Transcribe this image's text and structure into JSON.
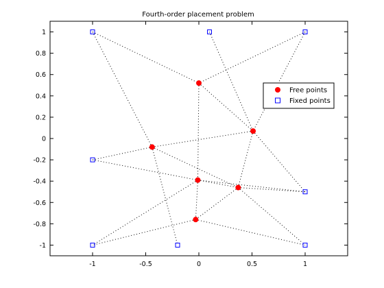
{
  "chart_data": {
    "type": "scatter",
    "title": "Fourth-order placement problem",
    "xlabel": "",
    "ylabel": "",
    "xlim": [
      -1.4,
      1.4
    ],
    "ylim": [
      -1.1,
      1.1
    ],
    "x_ticks": [
      -1,
      -0.5,
      0,
      0.5,
      1
    ],
    "x_tick_labels": [
      "-1",
      "-0.5",
      "0",
      "0.5",
      "1"
    ],
    "y_ticks": [
      -1,
      -0.8,
      -0.6,
      -0.4,
      -0.2,
      0,
      0.2,
      0.4,
      0.6,
      0.8,
      1
    ],
    "y_tick_labels": [
      "-1",
      "-0.8",
      "-0.6",
      "-0.4",
      "-0.2",
      "0",
      "0.2",
      "0.4",
      "0.6",
      "0.8",
      "1"
    ],
    "grid": false,
    "legend_position": "right",
    "colors": {
      "free": "#ff0000",
      "fixed": "#0000ff",
      "links": "#000000"
    },
    "series": [
      {
        "name": "Free points",
        "marker": "filled-circle",
        "points": [
          [
            0.0,
            0.52
          ],
          [
            0.51,
            0.07
          ],
          [
            -0.44,
            -0.08
          ],
          [
            -0.01,
            -0.39
          ],
          [
            0.37,
            -0.46
          ],
          [
            -0.03,
            -0.76
          ]
        ]
      },
      {
        "name": "Fixed points",
        "marker": "open-square",
        "points": [
          [
            -1,
            1
          ],
          [
            0.1,
            1
          ],
          [
            1,
            1
          ],
          [
            -1,
            -0.2
          ],
          [
            1,
            -0.5
          ],
          [
            -1,
            -1
          ],
          [
            -0.2,
            -1
          ],
          [
            1,
            -1
          ]
        ]
      }
    ],
    "links": [
      [
        [
          -1,
          1
        ],
        [
          -0.44,
          -0.08
        ]
      ],
      [
        [
          -1,
          1
        ],
        [
          0.0,
          0.52
        ]
      ],
      [
        [
          0.1,
          1
        ],
        [
          0.51,
          0.07
        ]
      ],
      [
        [
          1,
          1
        ],
        [
          0.0,
          0.52
        ]
      ],
      [
        [
          1,
          1
        ],
        [
          0.51,
          0.07
        ]
      ],
      [
        [
          0.0,
          0.52
        ],
        [
          0.51,
          0.07
        ]
      ],
      [
        [
          0.0,
          0.52
        ],
        [
          -0.01,
          -0.39
        ]
      ],
      [
        [
          -1,
          -0.2
        ],
        [
          -0.44,
          -0.08
        ]
      ],
      [
        [
          -1,
          -0.2
        ],
        [
          -0.01,
          -0.39
        ]
      ],
      [
        [
          -0.44,
          -0.08
        ],
        [
          0.51,
          0.07
        ]
      ],
      [
        [
          -0.44,
          -0.08
        ],
        [
          0.37,
          -0.46
        ]
      ],
      [
        [
          -0.44,
          -0.08
        ],
        [
          -0.2,
          -1
        ]
      ],
      [
        [
          0.51,
          0.07
        ],
        [
          0.37,
          -0.46
        ]
      ],
      [
        [
          0.51,
          0.07
        ],
        [
          1,
          -0.5
        ]
      ],
      [
        [
          -0.01,
          -0.39
        ],
        [
          0.37,
          -0.46
        ]
      ],
      [
        [
          -0.01,
          -0.39
        ],
        [
          1,
          -0.5
        ]
      ],
      [
        [
          -0.01,
          -0.39
        ],
        [
          -1,
          -1
        ]
      ],
      [
        [
          -0.01,
          -0.39
        ],
        [
          -0.03,
          -0.76
        ]
      ],
      [
        [
          0.37,
          -0.46
        ],
        [
          1,
          -0.5
        ]
      ],
      [
        [
          0.37,
          -0.46
        ],
        [
          1,
          -1
        ]
      ],
      [
        [
          0.37,
          -0.46
        ],
        [
          -0.03,
          -0.76
        ]
      ],
      [
        [
          -0.03,
          -0.76
        ],
        [
          -1,
          -1
        ]
      ],
      [
        [
          -0.03,
          -0.76
        ],
        [
          1,
          -1
        ]
      ]
    ]
  }
}
